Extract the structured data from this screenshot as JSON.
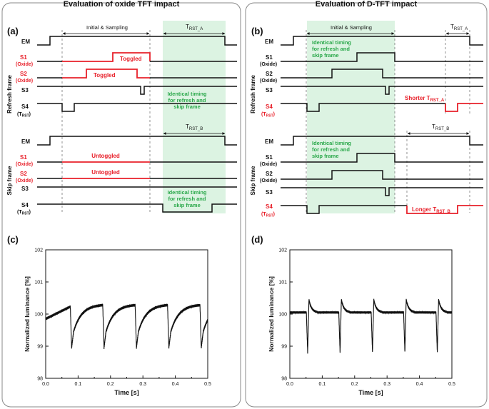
{
  "panels": {
    "left_title": "Evaluation of oxide TFT impact",
    "right_title": "Evaluation of D-TFT impact",
    "labels": {
      "a": "(a)",
      "b": "(b)",
      "c": "(c)",
      "d": "(d)"
    }
  },
  "timing": {
    "initial_sampling": "Initial & Sampling",
    "t": "T",
    "sub_rst_a": "RST_A",
    "sub_rst_b": "RST_B",
    "sub_rst": "RST",
    "refresh_frame": "Refresh frame",
    "skip_frame": "Skip frame",
    "em": "EM",
    "s1": "S1",
    "s2": "S2",
    "s3": "S3",
    "s4": "S4",
    "oxide": "(Oxide)",
    "paren_open": "(",
    "paren_close": ")",
    "toggled": "Toggled",
    "untoggled": "Untoggled",
    "identical_1": "Identical timing",
    "identical_2": "for refresh and",
    "identical_3": "skip frame",
    "identical_b_1": "Identical timing",
    "identical_b_2": "for refresh and",
    "identical_b_3": "skip frame",
    "shorter": "Shorter T",
    "longer": "Longer T"
  },
  "colors": {
    "red": "#e8202a",
    "green": "#2aa84a",
    "shade": "#dcf3e2",
    "black": "#111111"
  },
  "chart_data": [
    {
      "type": "line",
      "label": "(c)",
      "xlabel": "Time [s]",
      "ylabel": "Normalized luminance [%]",
      "xlim": [
        0.0,
        0.5
      ],
      "ylim": [
        98,
        102
      ],
      "xticks": [
        "0.0",
        "0.1",
        "0.2",
        "0.3",
        "0.4",
        "0.5"
      ],
      "yticks": [
        "98",
        "99",
        "100",
        "101",
        "102"
      ],
      "period": 0.1,
      "dip_times": [
        0.08,
        0.18,
        0.28,
        0.38,
        0.48
      ],
      "dip_min": 98.95,
      "peak_max": 100.3,
      "baseline_start": 99.85
    },
    {
      "type": "line",
      "label": "(d)",
      "xlabel": "Time [s]",
      "ylabel": "Normalized luminance [%]",
      "xlim": [
        0.0,
        0.5
      ],
      "ylim": [
        98,
        102
      ],
      "xticks": [
        "0.0",
        "0.1",
        "0.2",
        "0.3",
        "0.4",
        "0.5"
      ],
      "yticks": [
        "98",
        "99",
        "100",
        "101",
        "102"
      ],
      "period": 0.1,
      "dip_times": [
        0.055,
        0.155,
        0.255,
        0.355,
        0.455
      ],
      "dip_min": 98.8,
      "peak_max": 100.45,
      "baseline": 100.05
    }
  ]
}
